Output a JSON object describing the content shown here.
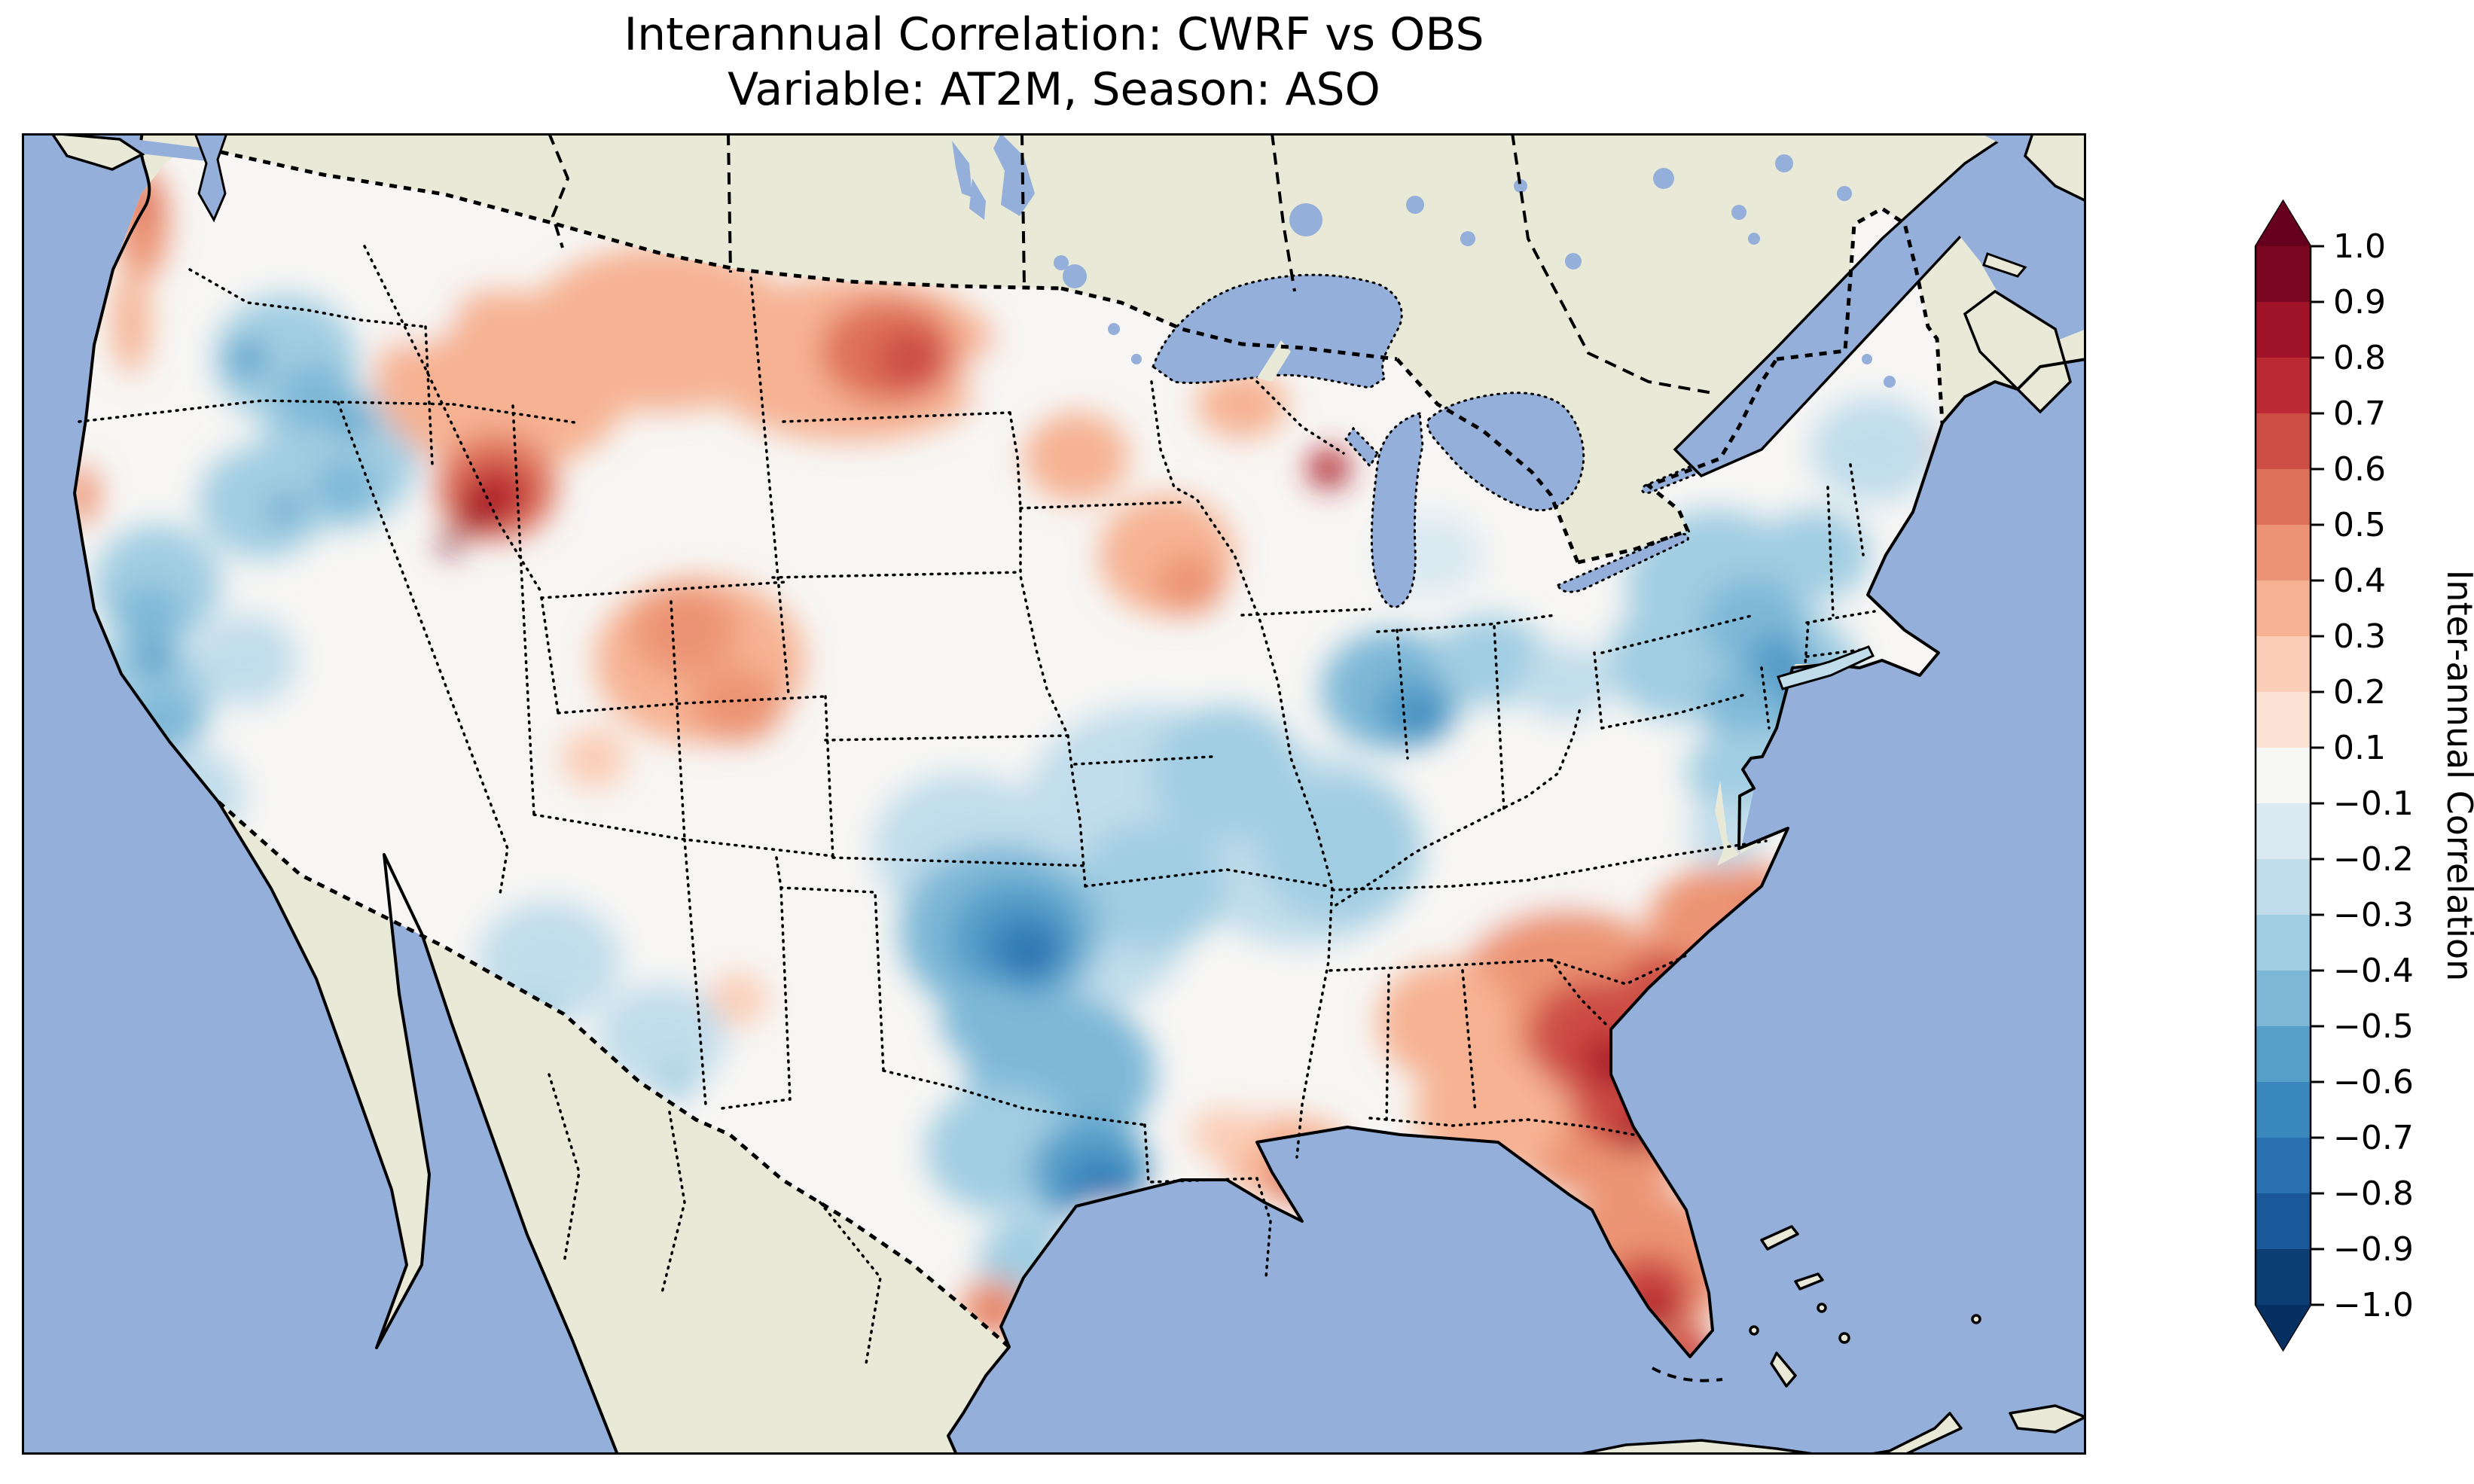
{
  "title": {
    "line1": "Interannual Correlation: CWRF vs OBS",
    "line2": "Variable: AT2M, Season: ASO"
  },
  "colorbar": {
    "label": "Inter-annual Correlation",
    "ticks": [
      "1.0",
      "0.9",
      "0.8",
      "0.7",
      "0.6",
      "0.5",
      "0.4",
      "0.3",
      "0.2",
      "0.1",
      "−0.1",
      "−0.2",
      "−0.3",
      "−0.4",
      "−0.5",
      "−0.6",
      "−0.7",
      "−0.8",
      "−0.9",
      "−1.0"
    ],
    "segment_colors_top_to_bottom": [
      "#7a0622",
      "#9f1228",
      "#bb2a33",
      "#cd4e44",
      "#de715a",
      "#ec9475",
      "#f6b293",
      "#fbcdb6",
      "#fce2d5",
      "#f7f7f6",
      "#dae9f2",
      "#c1ddeb",
      "#a1cde2",
      "#7eb8d7",
      "#569fc9",
      "#3a87bd",
      "#2971b1",
      "#1a5899",
      "#0c3d73"
    ],
    "over_color": "#67001f",
    "under_color": "#053061"
  },
  "map": {
    "ocean_color": "#94afd9",
    "land_color": "#e9e9d8",
    "field_neutral_color": "#f7f6f4",
    "coastline_color": "#000000"
  },
  "chart_data": {
    "type": "filled-contour-map",
    "title": "Interannual Correlation: CWRF vs OBS",
    "subtitle": "Variable: AT2M, Season: ASO",
    "colormap": "RdBu_r",
    "levels": [
      -1.0,
      -0.9,
      -0.8,
      -0.7,
      -0.6,
      -0.5,
      -0.4,
      -0.3,
      -0.2,
      -0.1,
      0.1,
      0.2,
      0.3,
      0.4,
      0.5,
      0.6,
      0.7,
      0.8,
      0.9,
      1.0
    ],
    "colorbar_label": "Inter-annual Correlation",
    "region": "Continental United States (CONUS) with southern Canada and northern Mexico context",
    "regional_correlations": [
      {
        "region": "Pacific Northwest interior (WA/OR/ID)",
        "approx_corr": -0.4
      },
      {
        "region": "Washington coast strip",
        "approx_corr": 0.4
      },
      {
        "region": "Northern Rockies (W Montana / Idaho border)",
        "approx_corr": 0.7
      },
      {
        "region": "Montana / North Dakota plains",
        "approx_corr": 0.5
      },
      {
        "region": "Minnesota / Wisconsin",
        "approx_corr": 0.3
      },
      {
        "region": "Door Peninsula (Lake Michigan shore)",
        "approx_corr": 0.8
      },
      {
        "region": "California central/coastal",
        "approx_corr": -0.5
      },
      {
        "region": "Great Basin / Utah",
        "approx_corr": 0.1
      },
      {
        "region": "Arizona / New Mexico",
        "approx_corr": -0.2
      },
      {
        "region": "Central plains (Nebraska/Kansas)",
        "approx_corr": -0.1
      },
      {
        "region": "Oklahoma",
        "approx_corr": -0.7
      },
      {
        "region": "North-central Texas",
        "approx_corr": -0.7
      },
      {
        "region": "Midwest (Missouri/Illinois/Kentucky/Tennessee)",
        "approx_corr": -0.5
      },
      {
        "region": "Northeast (NY/PA/New England)",
        "approx_corr": -0.5
      },
      {
        "region": "Maine",
        "approx_corr": -0.2
      },
      {
        "region": "Southeast (Georgia/South Carolina)",
        "approx_corr": 0.8
      },
      {
        "region": "Florida peninsula",
        "approx_corr": 0.7
      },
      {
        "region": "Louisiana coast",
        "approx_corr": 0.4
      },
      {
        "region": "Gulf coast Texas",
        "approx_corr": 0.0
      }
    ]
  }
}
